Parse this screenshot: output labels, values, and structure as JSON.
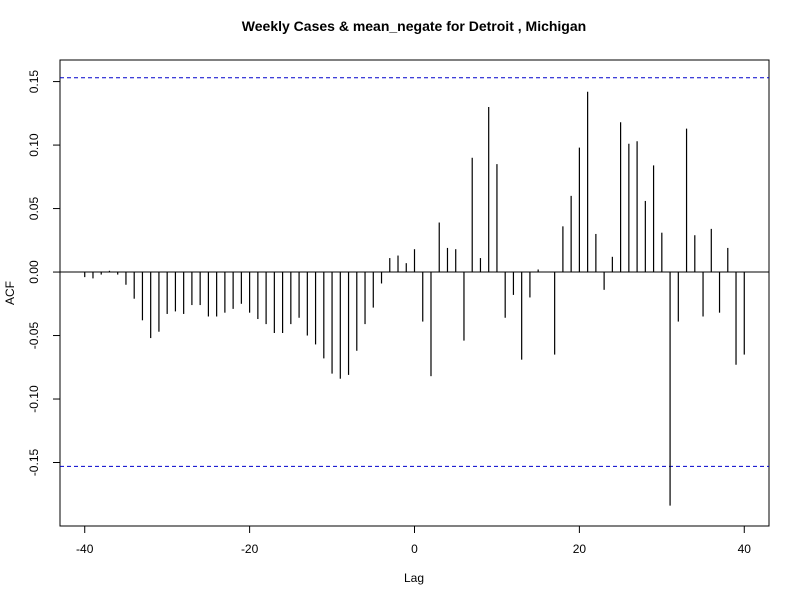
{
  "chart_data": {
    "type": "bar",
    "title": "Weekly Cases & mean_negate for Detroit , Michigan",
    "xlabel": "Lag",
    "ylabel": "ACF",
    "xlim": [
      -43,
      43
    ],
    "ylim": [
      -0.2,
      0.167
    ],
    "x_ticks": [
      -40,
      -20,
      0,
      20,
      40
    ],
    "y_ticks": [
      -0.15,
      -0.1,
      -0.05,
      0.0,
      0.05,
      0.1,
      0.15
    ],
    "y_tick_labels": [
      "-0.15",
      "-0.10",
      "-0.05",
      "0.00",
      "0.05",
      "0.10",
      "0.15"
    ],
    "confidence_bound": 0.153,
    "confidence_color": "#0000cc",
    "bar_color": "#000000",
    "grid": false,
    "lags": [
      -40,
      -39,
      -38,
      -37,
      -36,
      -35,
      -34,
      -33,
      -32,
      -31,
      -30,
      -29,
      -28,
      -27,
      -26,
      -25,
      -24,
      -23,
      -22,
      -21,
      -20,
      -19,
      -18,
      -17,
      -16,
      -15,
      -14,
      -13,
      -12,
      -11,
      -10,
      -9,
      -8,
      -7,
      -6,
      -5,
      -4,
      -3,
      -2,
      -1,
      0,
      1,
      2,
      3,
      4,
      5,
      6,
      7,
      8,
      9,
      10,
      11,
      12,
      13,
      14,
      15,
      16,
      17,
      18,
      19,
      20,
      21,
      22,
      23,
      24,
      25,
      26,
      27,
      28,
      29,
      30,
      31,
      32,
      33,
      34,
      35,
      36,
      37,
      38,
      39,
      40
    ],
    "values": [
      -0.004,
      -0.005,
      -0.002,
      0.001,
      -0.002,
      -0.01,
      -0.021,
      -0.038,
      -0.052,
      -0.047,
      -0.033,
      -0.031,
      -0.033,
      -0.026,
      -0.026,
      -0.035,
      -0.035,
      -0.032,
      -0.029,
      -0.025,
      -0.032,
      -0.037,
      -0.041,
      -0.048,
      -0.048,
      -0.041,
      -0.036,
      -0.05,
      -0.057,
      -0.068,
      -0.08,
      -0.084,
      -0.081,
      -0.062,
      -0.041,
      -0.028,
      -0.009,
      0.011,
      0.013,
      0.007,
      0.018,
      -0.039,
      -0.082,
      0.039,
      0.019,
      0.018,
      -0.054,
      0.09,
      0.011,
      0.13,
      0.085,
      -0.036,
      -0.018,
      -0.069,
      -0.02,
      0.002,
      0.0,
      -0.065,
      0.036,
      0.06,
      0.098,
      0.142,
      0.03,
      -0.014,
      0.012,
      0.118,
      0.101,
      0.103,
      0.056,
      0.084,
      0.031,
      -0.184,
      -0.039,
      0.113,
      0.029,
      -0.035,
      0.034,
      -0.032,
      0.019,
      -0.073,
      -0.065
    ]
  }
}
